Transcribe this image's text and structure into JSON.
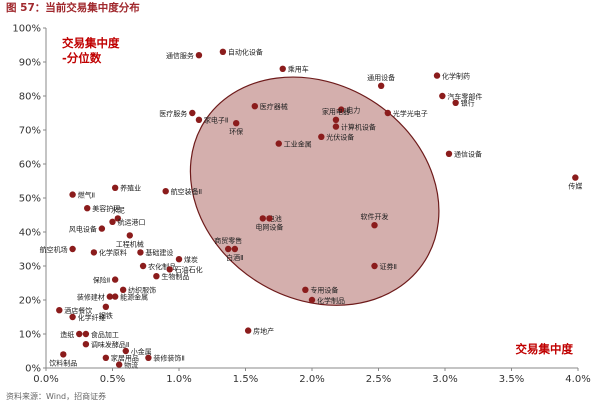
{
  "figure_title": "图 57：当前交易集中度分布",
  "source_text": "资料来源：Wind，招商证券",
  "colors": {
    "point": "#8b1c1c",
    "ellipse_fill": "#c4908e",
    "ellipse_stroke": "#6e1b1b",
    "axis": "#888888",
    "label": "#222222",
    "accent_text": "#c00000"
  },
  "chart_data": {
    "type": "scatter",
    "xlabel": "交易集中度",
    "ylabel": "交易集中度 -分位数",
    "ylabel_line1": "交易集中度",
    "ylabel_line2": "-分位数",
    "xlim": [
      0,
      0.04
    ],
    "ylim": [
      0,
      1.0
    ],
    "xticks": [
      0,
      0.005,
      0.01,
      0.015,
      0.02,
      0.025,
      0.03,
      0.035,
      0.04
    ],
    "xtick_labels": [
      "0.0%",
      "0.5%",
      "1.0%",
      "1.5%",
      "2.0%",
      "2.5%",
      "3.0%",
      "3.5%",
      "4.0%"
    ],
    "yticks": [
      0,
      0.1,
      0.2,
      0.3,
      0.4,
      0.5,
      0.6,
      0.7,
      0.8,
      0.9,
      1.0
    ],
    "ytick_labels": [
      "0%",
      "10%",
      "20%",
      "30%",
      "40%",
      "50%",
      "60%",
      "70%",
      "80%",
      "90%",
      "100%"
    ],
    "highlight_ellipse": {
      "cx": 0.0202,
      "cy": 0.52,
      "rx": 0.0098,
      "ry": 0.315,
      "rotation_deg": 32
    },
    "points": [
      {
        "name": "通信服务",
        "x": 0.0115,
        "y": 0.92,
        "label_pos": "l"
      },
      {
        "name": "自动化设备",
        "x": 0.0133,
        "y": 0.93,
        "label_pos": "r"
      },
      {
        "name": "乘用车",
        "x": 0.0178,
        "y": 0.88,
        "label_pos": "r"
      },
      {
        "name": "通用设备",
        "x": 0.0252,
        "y": 0.83,
        "label_pos": "u"
      },
      {
        "name": "化学制药",
        "x": 0.0294,
        "y": 0.86,
        "label_pos": "r"
      },
      {
        "name": "汽车零部件",
        "x": 0.0298,
        "y": 0.8,
        "label_pos": "r"
      },
      {
        "name": "银行",
        "x": 0.0308,
        "y": 0.78,
        "label_pos": "r"
      },
      {
        "name": "医疗服务",
        "x": 0.011,
        "y": 0.75,
        "label_pos": "l"
      },
      {
        "name": "家电子Ⅱ",
        "x": 0.0115,
        "y": 0.73,
        "label_pos": "r"
      },
      {
        "name": "医疗器械",
        "x": 0.0157,
        "y": 0.77,
        "label_pos": "r"
      },
      {
        "name": "电力",
        "x": 0.0222,
        "y": 0.76,
        "label_pos": "r"
      },
      {
        "name": "家用电器",
        "x": 0.0218,
        "y": 0.73,
        "label_pos": "u"
      },
      {
        "name": "光学光电子",
        "x": 0.0257,
        "y": 0.75,
        "label_pos": "r"
      },
      {
        "name": "环保",
        "x": 0.0143,
        "y": 0.72,
        "label_pos": "d"
      },
      {
        "name": "计算机设备",
        "x": 0.0218,
        "y": 0.71,
        "label_pos": "r"
      },
      {
        "name": "光伏设备",
        "x": 0.0207,
        "y": 0.68,
        "label_pos": "r"
      },
      {
        "name": "工业金属",
        "x": 0.0175,
        "y": 0.66,
        "label_pos": "r"
      },
      {
        "name": "通信设备",
        "x": 0.0303,
        "y": 0.63,
        "label_pos": "r"
      },
      {
        "name": "传媒",
        "x": 0.0398,
        "y": 0.56,
        "label_pos": "d"
      },
      {
        "name": "燃气Ⅱ",
        "x": 0.002,
        "y": 0.51,
        "label_pos": "r"
      },
      {
        "name": "养殖业",
        "x": 0.0052,
        "y": 0.53,
        "label_pos": "r"
      },
      {
        "name": "航空装备Ⅱ",
        "x": 0.009,
        "y": 0.52,
        "label_pos": "r"
      },
      {
        "name": "美容护理",
        "x": 0.0031,
        "y": 0.47,
        "label_pos": "r"
      },
      {
        "name": "水泥",
        "x": 0.0054,
        "y": 0.44,
        "label_pos": "u"
      },
      {
        "name": "航运港口",
        "x": 0.005,
        "y": 0.43,
        "label_pos": "r"
      },
      {
        "name": "风电设备",
        "x": 0.0042,
        "y": 0.41,
        "label_pos": "l"
      },
      {
        "name": "工程机械",
        "x": 0.0063,
        "y": 0.39,
        "label_pos": "d"
      },
      {
        "name": "电池",
        "x": 0.0163,
        "y": 0.44,
        "label_pos": "r"
      },
      {
        "name": "电网设备",
        "x": 0.0168,
        "y": 0.44,
        "label_pos": "d"
      },
      {
        "name": "软件开发",
        "x": 0.0247,
        "y": 0.42,
        "label_pos": "u"
      },
      {
        "name": "航空机场",
        "x": 0.002,
        "y": 0.35,
        "label_pos": "l"
      },
      {
        "name": "化学原料",
        "x": 0.0036,
        "y": 0.34,
        "label_pos": "r"
      },
      {
        "name": "基础建设",
        "x": 0.0071,
        "y": 0.34,
        "label_pos": "r"
      },
      {
        "name": "煤炭",
        "x": 0.01,
        "y": 0.32,
        "label_pos": "r"
      },
      {
        "name": "商贸零售",
        "x": 0.0137,
        "y": 0.35,
        "label_pos": "u"
      },
      {
        "name": "白酒Ⅱ",
        "x": 0.0142,
        "y": 0.35,
        "label_pos": "d"
      },
      {
        "name": "农化制品",
        "x": 0.0073,
        "y": 0.3,
        "label_pos": "r"
      },
      {
        "name": "石油石化",
        "x": 0.0093,
        "y": 0.29,
        "label_pos": "r"
      },
      {
        "name": "生物制品",
        "x": 0.0083,
        "y": 0.27,
        "label_pos": "r"
      },
      {
        "name": "证券Ⅱ",
        "x": 0.0247,
        "y": 0.3,
        "label_pos": "r"
      },
      {
        "name": "保险Ⅱ",
        "x": 0.0052,
        "y": 0.26,
        "label_pos": "l"
      },
      {
        "name": "纺织服饰",
        "x": 0.0058,
        "y": 0.23,
        "label_pos": "r"
      },
      {
        "name": "装修建材",
        "x": 0.0048,
        "y": 0.21,
        "label_pos": "l"
      },
      {
        "name": "能源金属",
        "x": 0.0052,
        "y": 0.21,
        "label_pos": "r"
      },
      {
        "name": "酒店餐饮",
        "x": 0.001,
        "y": 0.17,
        "label_pos": "r"
      },
      {
        "name": "钢铁",
        "x": 0.0045,
        "y": 0.18,
        "label_pos": "d"
      },
      {
        "name": "专用设备",
        "x": 0.0195,
        "y": 0.23,
        "label_pos": "r"
      },
      {
        "name": "化学制品",
        "x": 0.02,
        "y": 0.2,
        "label_pos": "r"
      },
      {
        "name": "化学纤维",
        "x": 0.002,
        "y": 0.15,
        "label_pos": "r"
      },
      {
        "name": "房地产",
        "x": 0.0152,
        "y": 0.11,
        "label_pos": "r"
      },
      {
        "name": "造纸",
        "x": 0.0025,
        "y": 0.1,
        "label_pos": "l"
      },
      {
        "name": "食品加工",
        "x": 0.003,
        "y": 0.1,
        "label_pos": "r"
      },
      {
        "name": "调味发酵品Ⅱ",
        "x": 0.003,
        "y": 0.07,
        "label_pos": "r"
      },
      {
        "name": "小金属",
        "x": 0.006,
        "y": 0.05,
        "label_pos": "r"
      },
      {
        "name": "饮料制品",
        "x": 0.0013,
        "y": 0.04,
        "label_pos": "d"
      },
      {
        "name": "家居用品",
        "x": 0.0045,
        "y": 0.03,
        "label_pos": "r"
      },
      {
        "name": "装修装饰Ⅱ",
        "x": 0.0077,
        "y": 0.03,
        "label_pos": "r"
      },
      {
        "name": "物流",
        "x": 0.0055,
        "y": 0.01,
        "label_pos": "r"
      }
    ]
  }
}
